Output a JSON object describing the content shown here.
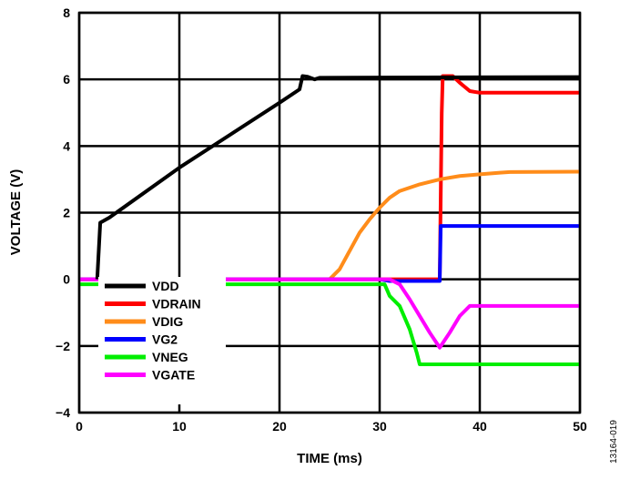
{
  "chart_data": {
    "type": "line",
    "xlabel": "TIME (ms)",
    "ylabel": "VOLTAGE (V)",
    "xlim": [
      0,
      50
    ],
    "ylim": [
      -4,
      8
    ],
    "xticks": [
      0,
      10,
      20,
      30,
      40,
      50
    ],
    "yticks": [
      -4,
      -2,
      0,
      2,
      4,
      6,
      8
    ],
    "ytick_labels": [
      "−4",
      "−2",
      "0",
      "2",
      "4",
      "6",
      "8"
    ],
    "grid": true,
    "legend_position": "bottom-left",
    "watermark": "13164-019",
    "series": [
      {
        "name": "VDD",
        "color": "#000000",
        "points": [
          [
            1.8,
            0
          ],
          [
            2.1,
            1.7
          ],
          [
            3,
            1.85
          ],
          [
            10,
            3.35
          ],
          [
            20,
            5.3
          ],
          [
            22,
            5.7
          ],
          [
            22.3,
            6.1
          ],
          [
            22.8,
            6.08
          ],
          [
            23.5,
            6.0
          ],
          [
            24,
            6.05
          ],
          [
            50,
            6.07
          ]
        ]
      },
      {
        "name": "VDRAIN",
        "color": "#ff0000",
        "points": [
          [
            0,
            0
          ],
          [
            36,
            0
          ],
          [
            36.2,
            5
          ],
          [
            36.3,
            6.1
          ],
          [
            37.3,
            6.1
          ],
          [
            38,
            5.9
          ],
          [
            39,
            5.65
          ],
          [
            40,
            5.6
          ],
          [
            50,
            5.6
          ]
        ]
      },
      {
        "name": "VDIG",
        "color": "#ff8c1a",
        "points": [
          [
            0,
            0
          ],
          [
            25,
            0
          ],
          [
            26,
            0.3
          ],
          [
            27,
            0.85
          ],
          [
            28,
            1.4
          ],
          [
            29,
            1.8
          ],
          [
            30,
            2.15
          ],
          [
            31,
            2.45
          ],
          [
            32,
            2.65
          ],
          [
            34,
            2.85
          ],
          [
            36,
            3.0
          ],
          [
            38,
            3.1
          ],
          [
            40,
            3.15
          ],
          [
            42,
            3.2
          ],
          [
            43,
            3.22
          ],
          [
            50,
            3.23
          ]
        ]
      },
      {
        "name": "VG2",
        "color": "#0000ff",
        "points": [
          [
            0,
            0
          ],
          [
            30,
            0
          ],
          [
            31,
            -0.05
          ],
          [
            36,
            -0.05
          ],
          [
            36.1,
            1.6
          ],
          [
            50,
            1.6
          ]
        ]
      },
      {
        "name": "VNEG",
        "color": "#00ee00",
        "points": [
          [
            0,
            -0.15
          ],
          [
            30.5,
            -0.15
          ],
          [
            31,
            -0.5
          ],
          [
            32,
            -0.8
          ],
          [
            33,
            -1.5
          ],
          [
            33.7,
            -2.2
          ],
          [
            34,
            -2.55
          ],
          [
            50,
            -2.55
          ]
        ]
      },
      {
        "name": "VGATE",
        "color": "#ff00ff",
        "points": [
          [
            0,
            0
          ],
          [
            31,
            0
          ],
          [
            32,
            -0.15
          ],
          [
            33,
            -0.6
          ],
          [
            34,
            -1.1
          ],
          [
            35,
            -1.6
          ],
          [
            36,
            -2.05
          ],
          [
            37,
            -1.6
          ],
          [
            38,
            -1.1
          ],
          [
            39,
            -0.8
          ],
          [
            50,
            -0.8
          ]
        ]
      }
    ]
  }
}
